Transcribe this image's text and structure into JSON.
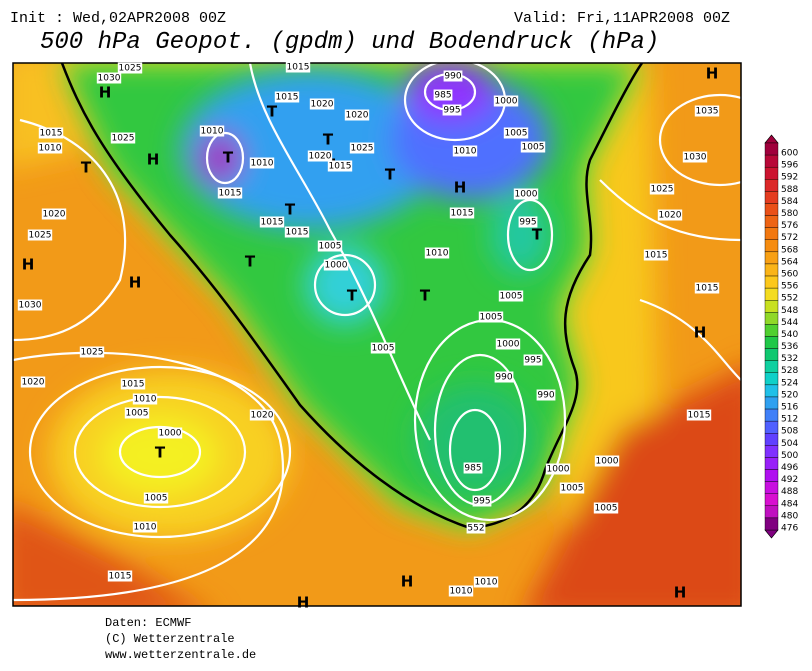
{
  "header": {
    "init": "Init : Wed,02APR2008 00Z",
    "valid": "Valid: Fri,11APR2008 00Z"
  },
  "title": "500 hPa Geopot. (gpdm) und Bodendruck (hPa)",
  "map": {
    "markers": [
      "H",
      "H",
      "H",
      "H",
      "H",
      "H",
      "H",
      "H",
      "H",
      "H",
      "T",
      "T",
      "T",
      "T",
      "T",
      "T",
      "T",
      "T",
      "T",
      "T",
      "T",
      "T"
    ],
    "labels": [
      "1030",
      "1025",
      "1015",
      "1015",
      "1020",
      "1010",
      "1015",
      "1010",
      "1020",
      "1015",
      "1025",
      "1020",
      "1015",
      "1015",
      "990",
      "985",
      "995",
      "1000",
      "1005",
      "1005",
      "1010",
      "1000",
      "1015",
      "995",
      "1010",
      "1005",
      "1000",
      "1005",
      "1005",
      "1005",
      "1000",
      "995",
      "990",
      "990",
      "985",
      "995",
      "1000",
      "1005",
      "1005",
      "1010",
      "1010",
      "1015",
      "1010",
      "1025",
      "1020",
      "1025",
      "1030",
      "1025",
      "1020",
      "1015",
      "1010",
      "1005",
      "1000",
      "1020",
      "1005",
      "1010",
      "1015",
      "1035",
      "1030",
      "1025",
      "1020",
      "1015",
      "1015",
      "1015",
      "1000",
      "552"
    ]
  },
  "colorbar": {
    "levels": [
      600,
      596,
      592,
      588,
      584,
      580,
      576,
      572,
      568,
      564,
      560,
      556,
      552,
      548,
      544,
      540,
      536,
      532,
      528,
      524,
      520,
      516,
      512,
      508,
      504,
      500,
      496,
      492,
      488,
      484,
      480,
      476
    ],
    "colors": [
      "#a0003c",
      "#b80838",
      "#cc1430",
      "#dc2828",
      "#e43c20",
      "#ea5018",
      "#ee6414",
      "#f27810",
      "#f68c10",
      "#f8a014",
      "#fab418",
      "#fcc81c",
      "#f4dc20",
      "#c8e020",
      "#90d828",
      "#50d030",
      "#20c848",
      "#10c870",
      "#10d0a0",
      "#10d0c8",
      "#20c0e8",
      "#30a0f0",
      "#4080f8",
      "#5060ff",
      "#6040ff",
      "#8030ff",
      "#9820f8",
      "#b010f0",
      "#c810e0",
      "#d810d0",
      "#c010c0",
      "#800080"
    ]
  },
  "footer": [
    "Daten: ECMWF",
    "(C) Wetterzentrale",
    "www.wetterzentrale.de"
  ]
}
